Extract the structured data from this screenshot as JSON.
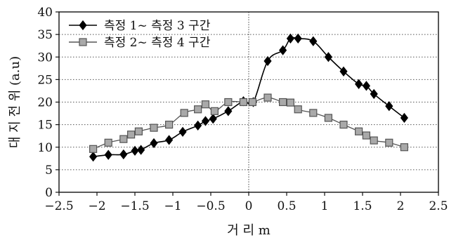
{
  "chart_data": {
    "type": "line",
    "xlabel": "거 리 m",
    "ylabel": "대 지 전 위 (a.u)",
    "xlim": [
      -2.5,
      2.5
    ],
    "ylim": [
      0,
      40
    ],
    "xticks": [
      -2.5,
      -2,
      -1.5,
      -1,
      -0.5,
      0,
      0.5,
      1,
      1.5,
      2,
      2.5
    ],
    "xtick_labels": [
      "−2.5",
      "−2",
      "−1.5",
      "−1",
      "−0.5",
      "0",
      "0.5",
      "1",
      "1.5",
      "2",
      "2.5"
    ],
    "yticks": [
      0,
      5,
      10,
      15,
      20,
      25,
      30,
      35,
      40
    ],
    "grid": "horizontal dotted",
    "legend_position": "top-left",
    "series": [
      {
        "name": "측정 1~ 측정 3 구간",
        "marker": "diamond",
        "color": "#000000",
        "points": [
          [
            -2.05,
            7.9
          ],
          [
            -1.85,
            8.3
          ],
          [
            -1.65,
            8.4
          ],
          [
            -1.5,
            9.2
          ],
          [
            -1.42,
            9.4
          ],
          [
            -1.25,
            10.9
          ],
          [
            -1.05,
            11.6
          ],
          [
            -0.87,
            13.4
          ],
          [
            -0.67,
            14.8
          ],
          [
            -0.57,
            15.8
          ],
          [
            -0.47,
            16.3
          ],
          [
            -0.27,
            18.0
          ],
          [
            -0.07,
            20.2
          ],
          [
            0.06,
            20.0
          ],
          [
            0.25,
            29.1
          ],
          [
            0.45,
            31.5
          ],
          [
            0.55,
            34.1
          ],
          [
            0.65,
            34.1
          ],
          [
            0.85,
            33.5
          ],
          [
            1.05,
            30.0
          ],
          [
            1.25,
            26.8
          ],
          [
            1.45,
            24.0
          ],
          [
            1.55,
            23.6
          ],
          [
            1.65,
            21.8
          ],
          [
            1.85,
            19.1
          ],
          [
            2.05,
            16.5
          ]
        ]
      },
      {
        "name": "측정 2~ 측정 4 구간",
        "marker": "square",
        "color": "#555555",
        "points": [
          [
            -2.05,
            9.6
          ],
          [
            -1.85,
            11.0
          ],
          [
            -1.65,
            11.8
          ],
          [
            -1.55,
            12.8
          ],
          [
            -1.45,
            13.5
          ],
          [
            -1.25,
            14.3
          ],
          [
            -1.05,
            15.0
          ],
          [
            -0.85,
            17.6
          ],
          [
            -0.67,
            18.4
          ],
          [
            -0.57,
            19.5
          ],
          [
            -0.45,
            18.0
          ],
          [
            -0.27,
            20.0
          ],
          [
            -0.07,
            20.0
          ],
          [
            0.05,
            20.0
          ],
          [
            0.25,
            21.0
          ],
          [
            0.45,
            20.0
          ],
          [
            0.55,
            19.9
          ],
          [
            0.65,
            18.4
          ],
          [
            0.85,
            17.6
          ],
          [
            1.05,
            16.5
          ],
          [
            1.25,
            15.0
          ],
          [
            1.45,
            13.5
          ],
          [
            1.55,
            12.6
          ],
          [
            1.65,
            11.5
          ],
          [
            1.85,
            11.0
          ],
          [
            2.05,
            10.0
          ]
        ]
      }
    ]
  }
}
